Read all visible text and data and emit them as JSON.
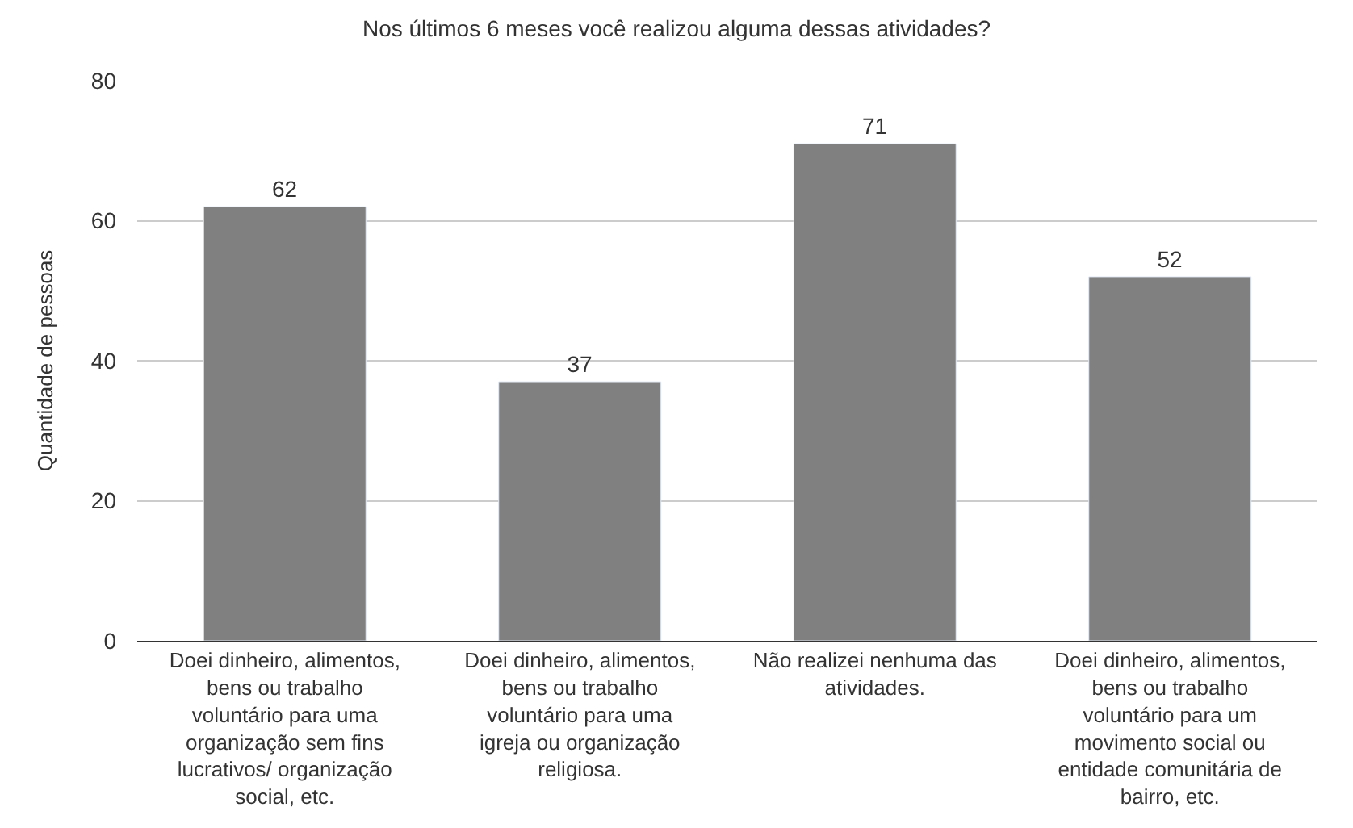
{
  "chart_data": {
    "type": "bar",
    "title": "Nos últimos 6 meses você realizou alguma dessas atividades?",
    "ylabel": "Quantidade de pessoas",
    "categories": [
      "Doei dinheiro, alimentos, bens ou trabalho voluntário para uma organização sem fins lucrativos/ organização social, etc.",
      "Doei dinheiro, alimentos, bens ou trabalho voluntário para uma igreja ou organização religiosa.",
      "Não realizei nenhuma das atividades.",
      "Doei dinheiro, alimentos, bens ou trabalho voluntário para um movimento social ou entidade comunitária de bairro, etc."
    ],
    "values": [
      62,
      37,
      71,
      52
    ],
    "color": "#808080",
    "ylim": [
      0,
      80
    ],
    "yticks": [
      0,
      20,
      40,
      60,
      80
    ],
    "grid": "y",
    "data_labels": true
  }
}
